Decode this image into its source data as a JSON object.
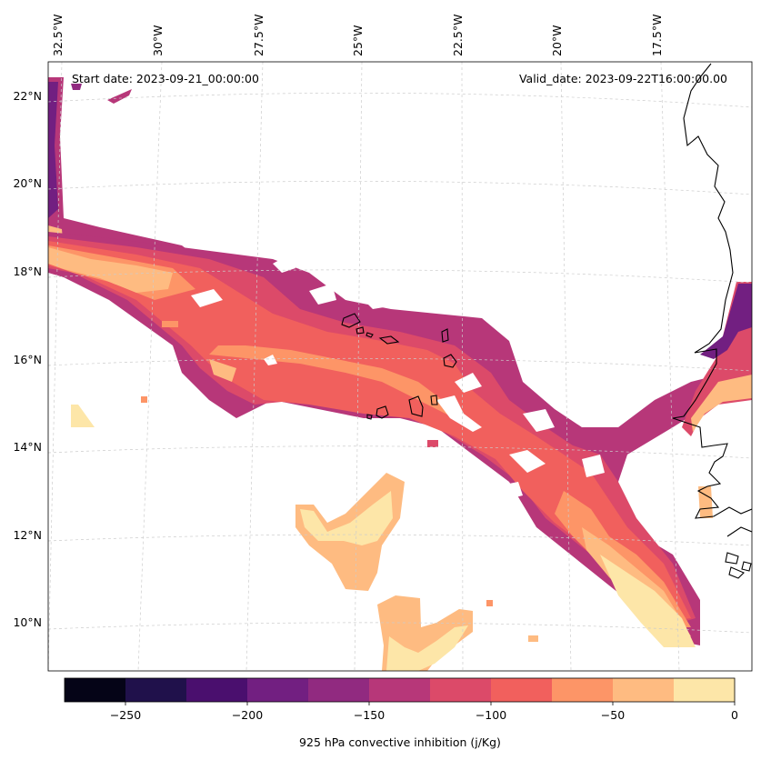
{
  "map": {
    "start_date": "Start date: 2023-09-21_00:00:00",
    "valid_date": "Valid_date: 2023-09-22T16:00:00.00",
    "lon_labels": [
      "32.5°W",
      "30°W",
      "27.5°W",
      "25°W",
      "22.5°W",
      "20°W",
      "17.5°W"
    ],
    "lat_labels": [
      "22°N",
      "20°N",
      "18°N",
      "16°N",
      "14°N",
      "12°N",
      "10°N"
    ],
    "gridlines": "dashed",
    "palette": "magma"
  },
  "colorbar": {
    "label": "925 hPa convective inhibition (j/Kg)",
    "tick_labels": [
      "−250",
      "−200",
      "−150",
      "−100",
      "−50",
      "0"
    ],
    "levels": [
      -275,
      -250,
      -225,
      -200,
      -175,
      -150,
      -125,
      -100,
      -75,
      -50,
      -25,
      0
    ],
    "colors": [
      "#050417",
      "#20114b",
      "#4a0f6e",
      "#721f81",
      "#912a80",
      "#b73779",
      "#dc4a69",
      "#f1605d",
      "#fd9567",
      "#febb81",
      "#fde6a8"
    ]
  }
}
